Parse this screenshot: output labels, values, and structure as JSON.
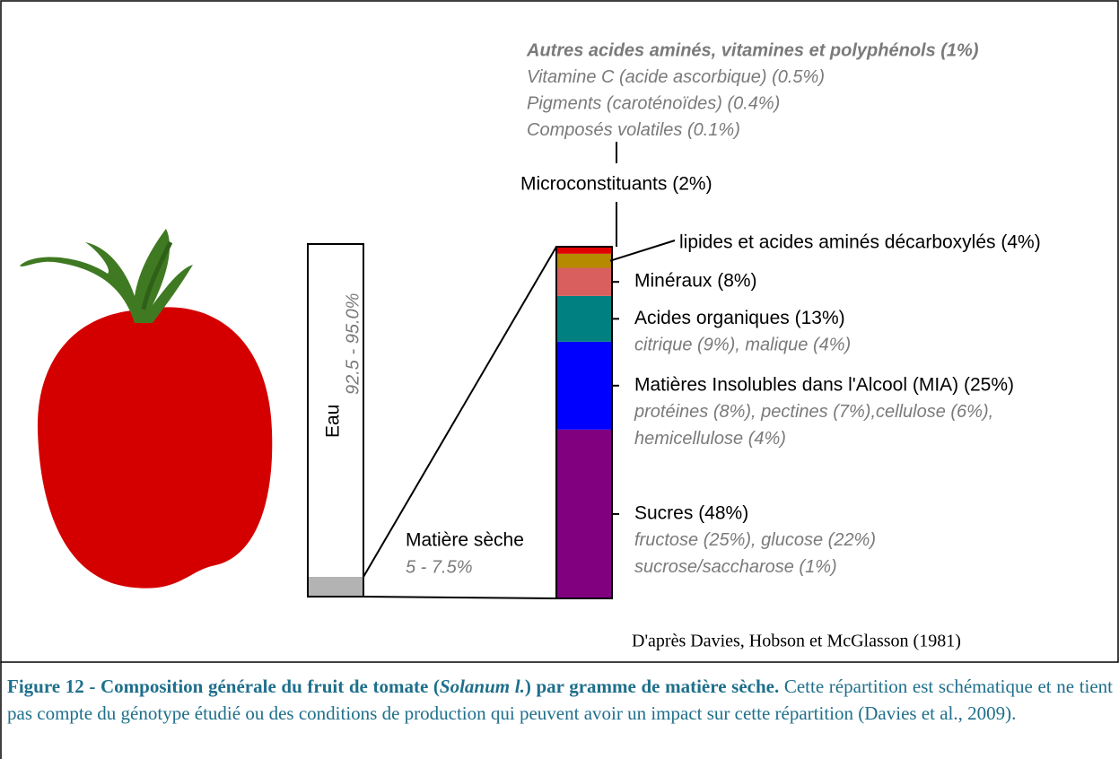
{
  "water": {
    "label": "Eau",
    "range": "92.5 - 95.0%"
  },
  "dry_matter": {
    "label": "Matière sèche",
    "range": "5 - 7.5%"
  },
  "segments": [
    {
      "label": "Sucres (48%)",
      "value": 48,
      "color": "#800080",
      "details": [
        "fructose (25%), glucose (22%)",
        "sucrose/saccharose (1%)"
      ]
    },
    {
      "label": "Matières Insolubles dans l'Alcool (MIA) (25%)",
      "value": 25,
      "color": "#0000ff",
      "details": [
        "protéines (8%), pectines (7%),cellulose (6%),",
        "hemicellulose (4%)"
      ]
    },
    {
      "label": "Acides organiques (13%)",
      "value": 13,
      "color": "#008080",
      "details": [
        "citrique (9%), malique (4%)"
      ]
    },
    {
      "label": "Minéraux (8%)",
      "value": 8,
      "color": "#d95f5f",
      "details": []
    },
    {
      "label": "lipides et acides aminés décarboxylés (4%)",
      "value": 4,
      "color": "#b58900",
      "details": []
    },
    {
      "label": "Microconstituants (2%)",
      "value": 2,
      "color": "#e00000",
      "details": [
        "Autres acides aminés, vitamines et polyphénols (1%)",
        "Vitamine C (acide ascorbique) (0.5%)",
        "Pigments (caroténoïdes) (0.4%)",
        "Composés volatiles (0.1%)"
      ]
    }
  ],
  "source": "D'après Davies, Hobson et McGlasson (1981)",
  "caption": {
    "title_start": "Figure 12 - Composition générale du fruit de tomate (",
    "title_italic": "Solanum l.",
    "title_end": ") par gramme de matière sèche.",
    "text": "Cette répartition est schématique et ne tient pas compte du génotype étudié ou des conditions de production qui peuvent avoir un impact sur cette répartition (Davies et al., 2009)."
  }
}
